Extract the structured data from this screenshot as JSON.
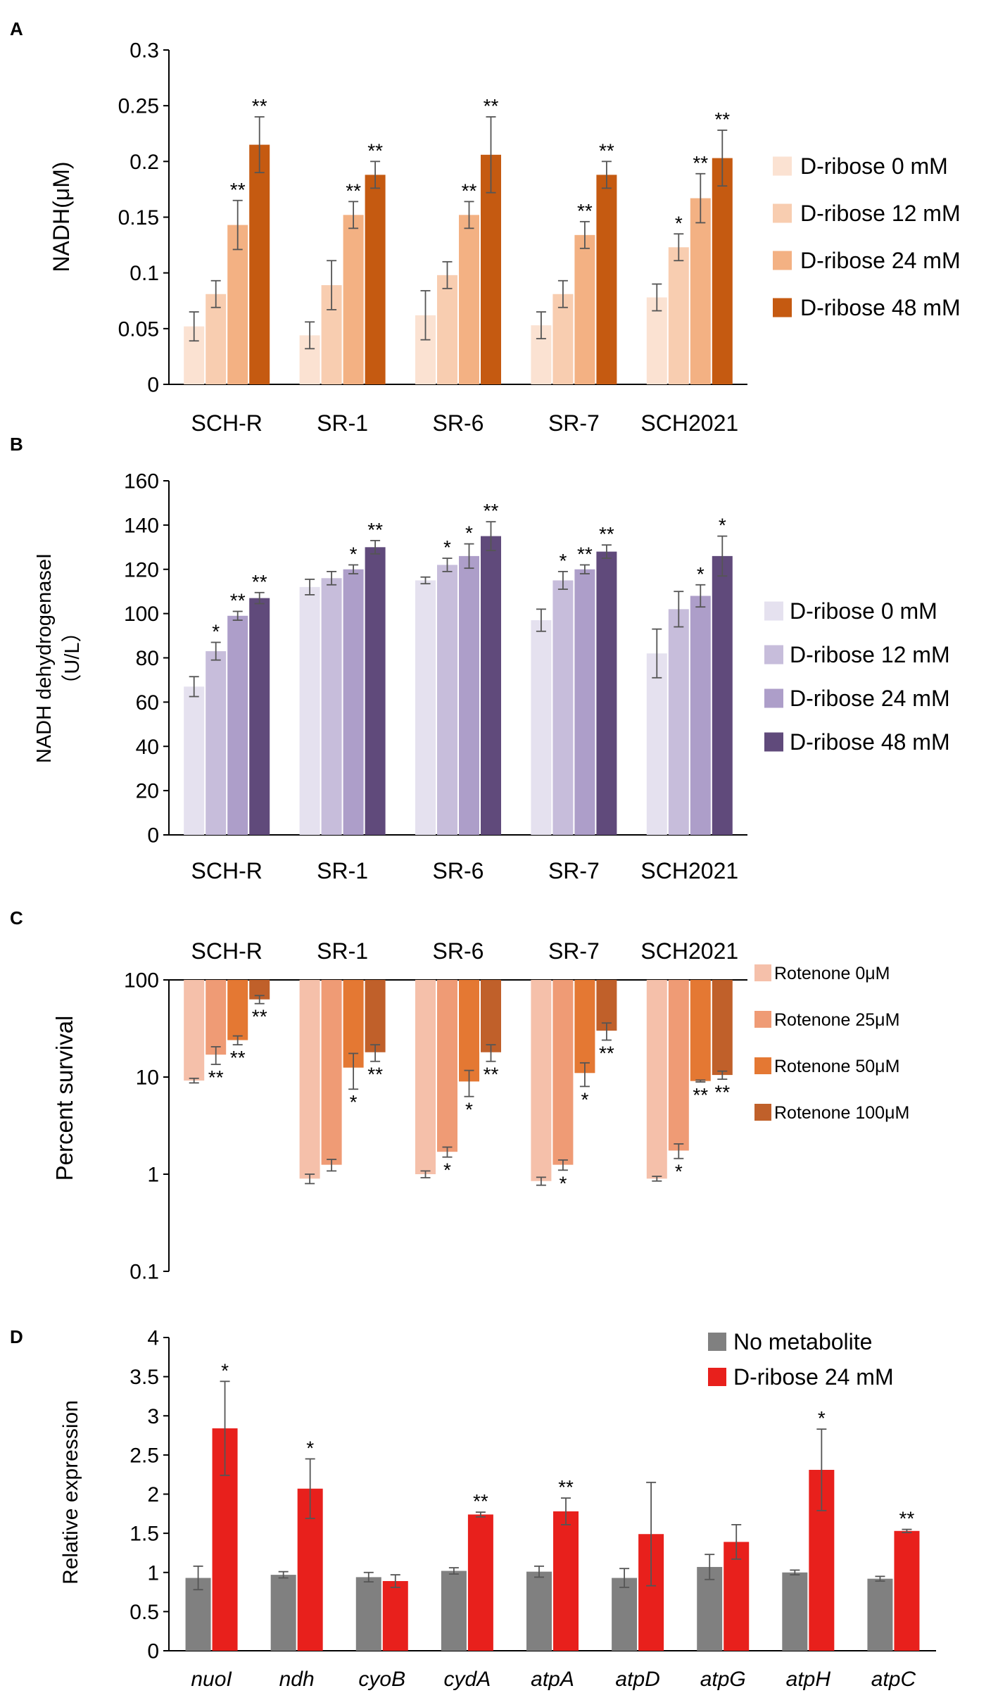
{
  "chart_data": [
    {
      "panel": "A",
      "type": "bar",
      "title": "",
      "xlabel": "",
      "ylabel": "NADH(μM)",
      "ylim": [
        0,
        0.3
      ],
      "yticks": [
        "0",
        "0.05",
        "0.1",
        "0.15",
        "0.2",
        "0.25",
        "0.3"
      ],
      "categories": [
        "SCH-R",
        "SR-1",
        "SR-6",
        "SR-7",
        "SCH2021"
      ],
      "legend_position": "right",
      "series": [
        {
          "name": "D-ribose 0 mM",
          "color": "#fbe2d2",
          "values": [
            0.052,
            0.044,
            0.062,
            0.053,
            0.078
          ],
          "errors": [
            0.013,
            0.012,
            0.022,
            0.012,
            0.012
          ],
          "sig": [
            "",
            "",
            "",
            "",
            ""
          ]
        },
        {
          "name": "D-ribose 12 mM",
          "color": "#f8cdb0",
          "values": [
            0.081,
            0.089,
            0.098,
            0.081,
            0.123
          ],
          "errors": [
            0.012,
            0.022,
            0.012,
            0.012,
            0.012
          ],
          "sig": [
            "",
            "",
            "",
            "",
            "*"
          ]
        },
        {
          "name": "D-ribose 24 mM",
          "color": "#f3b183",
          "values": [
            0.143,
            0.152,
            0.152,
            0.134,
            0.167
          ],
          "errors": [
            0.022,
            0.012,
            0.012,
            0.012,
            0.022
          ],
          "sig": [
            "**",
            "**",
            "**",
            "**",
            "**"
          ]
        },
        {
          "name": "D-ribose 48 mM",
          "color": "#c55a11",
          "values": [
            0.215,
            0.188,
            0.206,
            0.188,
            0.203
          ],
          "errors": [
            0.025,
            0.012,
            0.034,
            0.012,
            0.025
          ],
          "sig": [
            "**",
            "**",
            "**",
            "**",
            "**"
          ]
        }
      ]
    },
    {
      "panel": "B",
      "type": "bar",
      "title": "",
      "xlabel": "",
      "ylabel_lines": [
        "NADH dehydrogenaseI",
        "（U/L）"
      ],
      "ylim": [
        0,
        160
      ],
      "yticks": [
        "0",
        "20",
        "40",
        "60",
        "80",
        "100",
        "120",
        "140",
        "160"
      ],
      "categories": [
        "SCH-R",
        "SR-1",
        "SR-6",
        "SR-7",
        "SCH2021"
      ],
      "legend_position": "right",
      "series": [
        {
          "name": "D-ribose 0 mM",
          "color": "#e5e1ef",
          "values": [
            67,
            112,
            115,
            97,
            82
          ],
          "errors": [
            4.5,
            3.5,
            1.5,
            5,
            11
          ],
          "sig": [
            "",
            "",
            "",
            "",
            ""
          ]
        },
        {
          "name": "D-ribose 12 mM",
          "color": "#c7bddb",
          "values": [
            83,
            116,
            122,
            115,
            102
          ],
          "errors": [
            4,
            3,
            3,
            4,
            8
          ],
          "sig": [
            "*",
            "",
            "*",
            "*",
            ""
          ]
        },
        {
          "name": "D-ribose 24 mM",
          "color": "#ad9ec9",
          "values": [
            99,
            120,
            126,
            120,
            108
          ],
          "errors": [
            2,
            2,
            5.5,
            2,
            5
          ],
          "sig": [
            "**",
            "*",
            "*",
            "**",
            "*"
          ]
        },
        {
          "name": "D-ribose 48 mM",
          "color": "#604a7b",
          "values": [
            107,
            130,
            135,
            128,
            126
          ],
          "errors": [
            2.5,
            3,
            6.5,
            3,
            9
          ],
          "sig": [
            "**",
            "**",
            "**",
            "**",
            "*"
          ]
        }
      ]
    },
    {
      "panel": "C",
      "type": "bar",
      "scale": "log",
      "title": "",
      "xlabel": "",
      "ylabel": "Percent survival",
      "ylim": [
        0.1,
        100
      ],
      "yticks": [
        "0.1",
        "1",
        "10",
        "100"
      ],
      "categories": [
        "SCH-R",
        "SR-1",
        "SR-6",
        "SR-7",
        "SCH2021"
      ],
      "legend_position": "right",
      "series": [
        {
          "name": "Rotenone 0μM",
          "color": "#f5c0aa",
          "values": [
            9.2,
            0.9,
            1.0,
            0.85,
            0.9
          ],
          "errors": [
            0.5,
            0.1,
            0.08,
            0.08,
            0.05
          ],
          "sig": [
            "",
            "",
            "",
            "",
            ""
          ]
        },
        {
          "name": "Rotenone 25μM",
          "color": "#ef9b75",
          "values": [
            17,
            1.25,
            1.7,
            1.25,
            1.75
          ],
          "errors": [
            3.5,
            0.17,
            0.2,
            0.15,
            0.3
          ],
          "sig": [
            "**",
            "",
            "*",
            "*",
            "*"
          ]
        },
        {
          "name": "Rotenone 50μM",
          "color": "#e47833",
          "values": [
            24,
            12.5,
            9,
            11,
            9.1
          ],
          "errors": [
            2.5,
            5,
            2.7,
            3,
            0.2
          ],
          "sig": [
            "**",
            "*",
            "*",
            "*",
            "**"
          ]
        },
        {
          "name": "Rotenone 100μM",
          "color": "#c0602a",
          "values": [
            63,
            18,
            18,
            30,
            10.5
          ],
          "errors": [
            6,
            3.5,
            3.5,
            6,
            1
          ],
          "sig": [
            "**",
            "**",
            "**",
            "**",
            "**"
          ]
        }
      ]
    },
    {
      "panel": "D",
      "type": "bar",
      "title": "",
      "xlabel": "",
      "ylabel": "Relative expression",
      "ylim": [
        0,
        4
      ],
      "yticks": [
        "0",
        "0.5",
        "1",
        "1.5",
        "2",
        "2.5",
        "3",
        "3.5",
        "4"
      ],
      "categories": [
        "nuoI",
        "ndh",
        "cyoB",
        "cydA",
        "atpA",
        "atpD",
        "atpG",
        "atpH",
        "atpC"
      ],
      "legend_position": "top-right",
      "series": [
        {
          "name": "No metabolite",
          "color": "#808080",
          "values": [
            0.93,
            0.97,
            0.94,
            1.02,
            1.01,
            0.93,
            1.07,
            1.0,
            0.92
          ],
          "errors": [
            0.15,
            0.04,
            0.06,
            0.04,
            0.07,
            0.12,
            0.16,
            0.03,
            0.03
          ],
          "sig": [
            "",
            "",
            "",
            "",
            "",
            "",
            "",
            "",
            ""
          ]
        },
        {
          "name": "D-ribose 24 mM",
          "color": "#e8201c",
          "values": [
            2.84,
            2.07,
            0.89,
            1.74,
            1.78,
            1.49,
            1.39,
            2.31,
            1.53
          ],
          "errors": [
            0.6,
            0.38,
            0.08,
            0.03,
            0.17,
            0.66,
            0.22,
            0.52,
            0.02
          ],
          "sig": [
            "*",
            "*",
            "",
            "**",
            "**",
            "",
            "",
            "*",
            "**"
          ]
        }
      ]
    }
  ]
}
